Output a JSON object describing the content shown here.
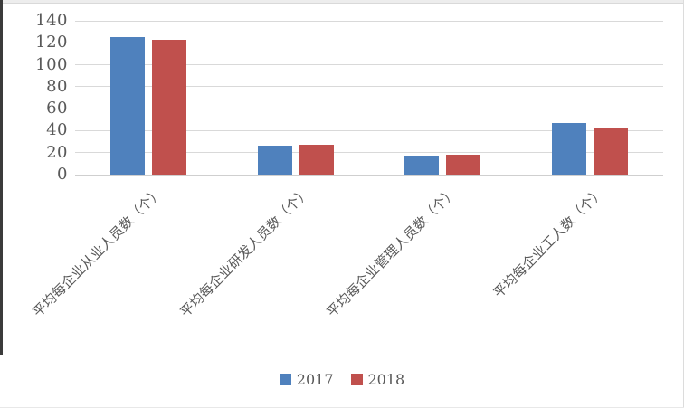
{
  "chart_data": {
    "type": "bar",
    "title": "",
    "xlabel": "",
    "ylabel": "",
    "categories": [
      "平均每企业从业人员数（个）",
      "平均每企业研发人员数（个）",
      "平均每企业管理人员数（个）",
      "平均每企业工人数（个）"
    ],
    "series": [
      {
        "name": "2017",
        "color": "#4F81BD",
        "values": [
          125,
          26,
          17,
          47
        ]
      },
      {
        "name": "2018",
        "color": "#C0504D",
        "values": [
          123,
          27,
          18,
          42
        ]
      }
    ],
    "ylim": [
      0,
      140
    ],
    "yticks": [
      0,
      20,
      40,
      60,
      80,
      100,
      120,
      140
    ],
    "grid": true,
    "legend_position": "bottom"
  },
  "style": {
    "text_color": "#595959",
    "gridline_color": "#d9d9d9",
    "axis_line_color": "#cfcfcf",
    "background": "#ffffff"
  }
}
